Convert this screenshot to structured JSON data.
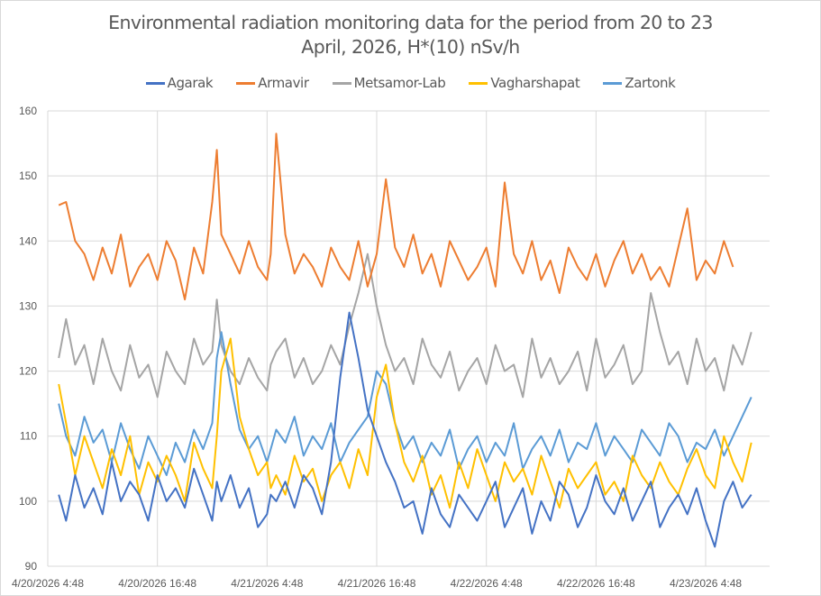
{
  "chart_data": {
    "type": "line",
    "title_lines": [
      "Environmental radiation monitoring data for the period from 20 to 23",
      "April, 2026, H*(10) nSv/h"
    ],
    "xlabel": "",
    "ylabel": "",
    "ylim": [
      90,
      160
    ],
    "yticks": [
      90,
      100,
      110,
      120,
      130,
      140,
      150,
      160
    ],
    "x_unit": "hours since 4/20/2026 4:48",
    "xlim_hours": [
      0,
      79
    ],
    "xticks": [
      {
        "hours": 0,
        "label": "4/20/2026 4:48"
      },
      {
        "hours": 12,
        "label": "4/20/2026 16:48"
      },
      {
        "hours": 24,
        "label": "4/21/2026 4:48"
      },
      {
        "hours": 36,
        "label": "4/21/2026 16:48"
      },
      {
        "hours": 48,
        "label": "4/22/2026 4:48"
      },
      {
        "hours": 60,
        "label": "4/22/2026 16:48"
      },
      {
        "hours": 72,
        "label": "4/23/2026 4:48"
      }
    ],
    "grid": true,
    "legend_position": "top",
    "x_hours": [
      1.2,
      2,
      3,
      4,
      5,
      6,
      7,
      8,
      9,
      10,
      11,
      12,
      13,
      14,
      15,
      16,
      17,
      18,
      18.5,
      19,
      20,
      21,
      22,
      23,
      24,
      24.4,
      25,
      26,
      27,
      28,
      29,
      30,
      31,
      32,
      33,
      34,
      35,
      36,
      37,
      38,
      39,
      40,
      41,
      42,
      43,
      44,
      45,
      46,
      47,
      48,
      49,
      50,
      51,
      52,
      53,
      54,
      55,
      56,
      57,
      58,
      59,
      60,
      61,
      62,
      63,
      64,
      65,
      66,
      67,
      68,
      69,
      70,
      71,
      72,
      73,
      74,
      75,
      76,
      77
    ],
    "series": [
      {
        "name": "Agarak",
        "color": "#4472C4",
        "values": [
          101,
          97,
          104,
          99,
          102,
          98,
          106,
          100,
          103,
          101,
          97,
          104,
          100,
          102,
          99,
          105,
          101,
          97,
          103,
          100,
          104,
          99,
          102,
          96,
          98,
          101,
          100,
          103,
          99,
          104,
          102,
          98,
          106,
          119,
          129,
          122,
          114,
          110,
          106,
          103,
          99,
          100,
          95,
          102,
          98,
          96,
          101,
          99,
          97,
          100,
          103,
          96,
          99,
          102,
          95,
          100,
          97,
          103,
          101,
          96,
          99,
          104,
          100,
          98,
          102,
          97,
          100,
          103,
          96,
          99,
          101,
          98,
          102,
          97,
          93,
          100,
          103,
          99,
          101
        ]
      },
      {
        "name": "Armavir",
        "color": "#ED7D31",
        "values": [
          145.5,
          146,
          140,
          138,
          134,
          139,
          135,
          141,
          133,
          136,
          138,
          134,
          140,
          137,
          131,
          139,
          135,
          146,
          154,
          141,
          138,
          135,
          140,
          136,
          134,
          138,
          156.5,
          141,
          135,
          138,
          136,
          133,
          139,
          136,
          134,
          140,
          133,
          138,
          149.5,
          139,
          136,
          141,
          135,
          138,
          133,
          140,
          137,
          134,
          136,
          139,
          133,
          149,
          138,
          135,
          140,
          134,
          137,
          132,
          139,
          136,
          134,
          138,
          133,
          137,
          140,
          135,
          138,
          134,
          136,
          133,
          139,
          145,
          134,
          137,
          135,
          140,
          136
        ]
      },
      {
        "name": "Metsamor-Lab",
        "color": "#A5A5A5",
        "values": [
          122,
          128,
          121,
          124,
          118,
          125,
          120,
          117,
          124,
          119,
          121,
          116,
          123,
          120,
          118,
          125,
          121,
          123,
          131,
          124,
          120,
          118,
          122,
          119,
          117,
          121,
          123,
          125,
          119,
          122,
          118,
          120,
          124,
          121,
          127,
          132,
          138,
          130,
          124,
          120,
          122,
          118,
          125,
          121,
          119,
          123,
          117,
          120,
          122,
          118,
          124,
          120,
          121,
          116,
          125,
          119,
          122,
          118,
          120,
          123,
          117,
          125,
          119,
          121,
          124,
          118,
          120,
          132,
          126,
          121,
          123,
          118,
          125,
          120,
          122,
          117,
          124,
          121,
          126
        ]
      },
      {
        "name": "Vagharshapat",
        "color": "#FFC000",
        "values": [
          118,
          112,
          104,
          110,
          106,
          102,
          108,
          104,
          110,
          101,
          106,
          103,
          107,
          104,
          100,
          109,
          105,
          102,
          110,
          120,
          125,
          113,
          108,
          104,
          106,
          102,
          104,
          101,
          107,
          103,
          105,
          100,
          104,
          106,
          102,
          108,
          104,
          116,
          121,
          112,
          106,
          103,
          107,
          101,
          104,
          99,
          106,
          102,
          108,
          104,
          100,
          106,
          103,
          105,
          101,
          107,
          103,
          99,
          105,
          102,
          104,
          106,
          101,
          103,
          100,
          107,
          104,
          102,
          106,
          103,
          101,
          105,
          108,
          104,
          102,
          110,
          106,
          103,
          109
        ]
      },
      {
        "name": "Zartonk",
        "color": "#5B9BD5",
        "values": [
          115,
          110,
          107,
          113,
          109,
          111,
          106,
          112,
          108,
          105,
          110,
          107,
          104,
          109,
          106,
          111,
          108,
          112,
          122,
          126,
          118,
          111,
          108,
          110,
          106,
          108,
          111,
          109,
          113,
          107,
          110,
          108,
          112,
          106,
          109,
          111,
          113,
          120,
          118,
          112,
          108,
          110,
          106,
          109,
          107,
          111,
          105,
          108,
          110,
          106,
          109,
          107,
          112,
          105,
          108,
          110,
          107,
          111,
          106,
          109,
          108,
          112,
          107,
          110,
          108,
          106,
          111,
          109,
          107,
          112,
          110,
          106,
          109,
          108,
          111,
          107,
          110,
          113,
          116
        ]
      }
    ]
  }
}
